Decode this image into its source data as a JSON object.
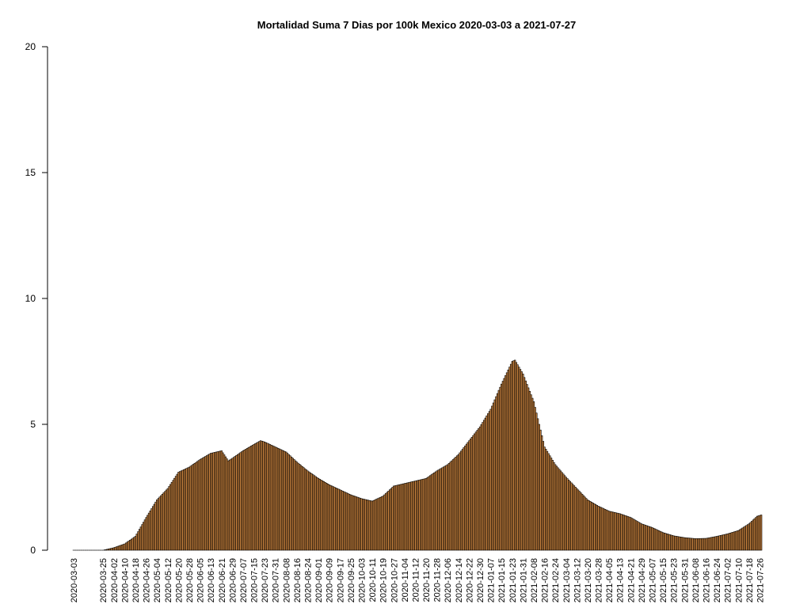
{
  "chart_data": {
    "type": "bar",
    "title": "Mortalidad Suma 7 Dias por 100k Mexico 2020-03-03 a 2021-07-27",
    "xlabel": "",
    "ylabel": "",
    "ylim": [
      0,
      20
    ],
    "y_ticks": [
      "0",
      "5",
      "10",
      "15",
      "20"
    ],
    "x_start_date": "2020-03-03",
    "x_end_date": "2021-07-27",
    "x_tick_labels": [
      "2020-03-03",
      "2020-03-25",
      "2020-04-02",
      "2020-04-10",
      "2020-04-18",
      "2020-04-26",
      "2020-05-04",
      "2020-05-12",
      "2020-05-20",
      "2020-05-28",
      "2020-06-05",
      "2020-06-13",
      "2020-06-21",
      "2020-06-29",
      "2020-07-07",
      "2020-07-15",
      "2020-07-23",
      "2020-07-31",
      "2020-08-08",
      "2020-08-16",
      "2020-08-24",
      "2020-09-01",
      "2020-09-09",
      "2020-09-17",
      "2020-09-25",
      "2020-10-03",
      "2020-10-11",
      "2020-10-19",
      "2020-10-27",
      "2020-11-04",
      "2020-11-12",
      "2020-11-20",
      "2020-11-28",
      "2020-12-06",
      "2020-12-14",
      "2020-12-22",
      "2020-12-30",
      "2021-01-07",
      "2021-01-15",
      "2021-01-23",
      "2021-01-31",
      "2021-02-08",
      "2021-02-16",
      "2021-02-24",
      "2021-03-04",
      "2021-03-12",
      "2021-03-20",
      "2021-03-28",
      "2021-04-05",
      "2021-04-13",
      "2021-04-21",
      "2021-04-29",
      "2021-05-07",
      "2021-05-15",
      "2021-05-23",
      "2021-05-31",
      "2021-06-08",
      "2021-06-16",
      "2021-06-24",
      "2021-07-02",
      "2021-07-10",
      "2021-07-18",
      "2021-07-26"
    ],
    "bar_fill": "#cd853f",
    "bar_stroke": "#000000",
    "series_points": [
      [
        "2020-03-03",
        0.0
      ],
      [
        "2020-03-25",
        0.0
      ],
      [
        "2020-04-02",
        0.1
      ],
      [
        "2020-04-10",
        0.25
      ],
      [
        "2020-04-18",
        0.55
      ],
      [
        "2020-04-26",
        1.3
      ],
      [
        "2020-05-04",
        2.0
      ],
      [
        "2020-05-12",
        2.45
      ],
      [
        "2020-05-20",
        3.1
      ],
      [
        "2020-05-28",
        3.3
      ],
      [
        "2020-06-05",
        3.6
      ],
      [
        "2020-06-13",
        3.85
      ],
      [
        "2020-06-21",
        3.95
      ],
      [
        "2020-06-26",
        3.55
      ],
      [
        "2020-06-29",
        3.65
      ],
      [
        "2020-07-07",
        3.95
      ],
      [
        "2020-07-15",
        4.2
      ],
      [
        "2020-07-20",
        4.35
      ],
      [
        "2020-07-23",
        4.3
      ],
      [
        "2020-07-31",
        4.1
      ],
      [
        "2020-08-08",
        3.9
      ],
      [
        "2020-08-16",
        3.5
      ],
      [
        "2020-08-24",
        3.15
      ],
      [
        "2020-09-01",
        2.85
      ],
      [
        "2020-09-09",
        2.6
      ],
      [
        "2020-09-17",
        2.4
      ],
      [
        "2020-09-25",
        2.2
      ],
      [
        "2020-10-03",
        2.05
      ],
      [
        "2020-10-11",
        1.95
      ],
      [
        "2020-10-19",
        2.15
      ],
      [
        "2020-10-27",
        2.55
      ],
      [
        "2020-11-04",
        2.65
      ],
      [
        "2020-11-12",
        2.75
      ],
      [
        "2020-11-20",
        2.85
      ],
      [
        "2020-11-28",
        3.15
      ],
      [
        "2020-12-06",
        3.4
      ],
      [
        "2020-12-14",
        3.8
      ],
      [
        "2020-12-22",
        4.35
      ],
      [
        "2020-12-30",
        4.9
      ],
      [
        "2021-01-07",
        5.6
      ],
      [
        "2021-01-15",
        6.6
      ],
      [
        "2021-01-23",
        7.5
      ],
      [
        "2021-01-25",
        7.55
      ],
      [
        "2021-01-31",
        7.0
      ],
      [
        "2021-02-08",
        5.9
      ],
      [
        "2021-02-16",
        4.1
      ],
      [
        "2021-02-24",
        3.4
      ],
      [
        "2021-03-04",
        2.9
      ],
      [
        "2021-03-12",
        2.45
      ],
      [
        "2021-03-20",
        2.0
      ],
      [
        "2021-03-28",
        1.75
      ],
      [
        "2021-04-05",
        1.55
      ],
      [
        "2021-04-13",
        1.45
      ],
      [
        "2021-04-21",
        1.3
      ],
      [
        "2021-04-29",
        1.05
      ],
      [
        "2021-05-07",
        0.9
      ],
      [
        "2021-05-15",
        0.7
      ],
      [
        "2021-05-23",
        0.57
      ],
      [
        "2021-05-31",
        0.5
      ],
      [
        "2021-06-08",
        0.46
      ],
      [
        "2021-06-16",
        0.47
      ],
      [
        "2021-06-24",
        0.55
      ],
      [
        "2021-07-02",
        0.65
      ],
      [
        "2021-07-10",
        0.78
      ],
      [
        "2021-07-18",
        1.05
      ],
      [
        "2021-07-24",
        1.35
      ],
      [
        "2021-07-27",
        1.4
      ]
    ]
  }
}
